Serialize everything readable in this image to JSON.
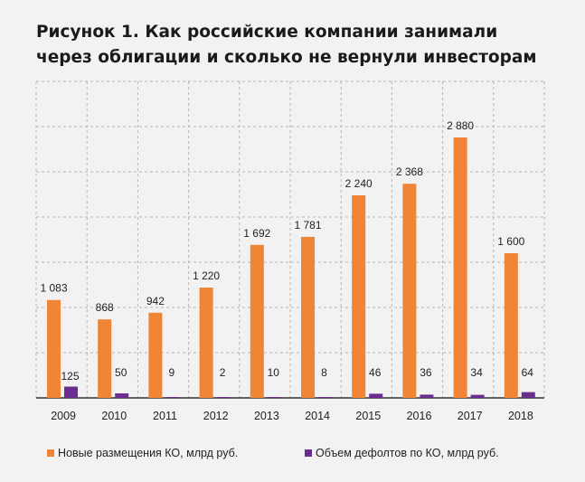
{
  "title": {
    "line1": "Рисунок 1. Как российские компании занимали",
    "line2": "через облигации и сколько не вернули инвесторам"
  },
  "colors": {
    "orange": "#f08535",
    "purple": "#6b2d8f",
    "grid": "#b5b5b5",
    "axis": "#333333"
  },
  "chart_data": {
    "type": "bar",
    "categories": [
      "2009",
      "2010",
      "2011",
      "2012",
      "2013",
      "2014",
      "2015",
      "2016",
      "2017",
      "2018"
    ],
    "series": [
      {
        "name": "Новые размещения КО, млрд руб.",
        "values": [
          1083,
          868,
          942,
          1220,
          1692,
          1781,
          2240,
          2368,
          2880,
          1600
        ],
        "labels": [
          "1 083",
          "868",
          "942",
          "1 220",
          "1 692",
          "1 781",
          "2 240",
          "2 368",
          "2 880",
          "1 600"
        ],
        "color": "#f08535"
      },
      {
        "name": "Объем дефолтов по КО, млрд руб.",
        "values": [
          125,
          50,
          9,
          2,
          10,
          8,
          46,
          36,
          34,
          64
        ],
        "labels": [
          "125",
          "50",
          "9",
          "2",
          "10",
          "8",
          "46",
          "36",
          "34",
          "64"
        ],
        "color": "#6b2d8f"
      }
    ],
    "ylim": [
      0,
      3500
    ],
    "grid": true,
    "legend_position": "bottom"
  }
}
